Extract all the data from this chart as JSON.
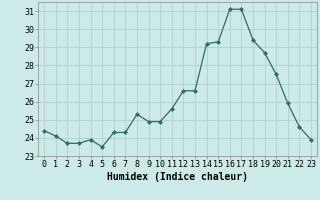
{
  "x": [
    0,
    1,
    2,
    3,
    4,
    5,
    6,
    7,
    8,
    9,
    10,
    11,
    12,
    13,
    14,
    15,
    16,
    17,
    18,
    19,
    20,
    21,
    22,
    23
  ],
  "y": [
    24.4,
    24.1,
    23.7,
    23.7,
    23.9,
    23.5,
    24.3,
    24.3,
    25.3,
    24.9,
    24.9,
    25.6,
    26.6,
    26.6,
    29.2,
    29.3,
    31.1,
    31.1,
    29.4,
    28.7,
    27.5,
    25.9,
    24.6,
    23.9
  ],
  "line_color": "#2d6e63",
  "marker": "D",
  "marker_size": 2.0,
  "bg_color": "#cceae8",
  "grid_color": "#b0d0ce",
  "xlabel": "Humidex (Indice chaleur)",
  "ylim": [
    23,
    31.5
  ],
  "xlim": [
    -0.5,
    23.5
  ],
  "yticks": [
    23,
    24,
    25,
    26,
    27,
    28,
    29,
    30,
    31
  ],
  "xticks": [
    0,
    1,
    2,
    3,
    4,
    5,
    6,
    7,
    8,
    9,
    10,
    11,
    12,
    13,
    14,
    15,
    16,
    17,
    18,
    19,
    20,
    21,
    22,
    23
  ],
  "tick_fontsize": 6.0,
  "xlabel_fontsize": 7.0,
  "line_width": 0.9
}
